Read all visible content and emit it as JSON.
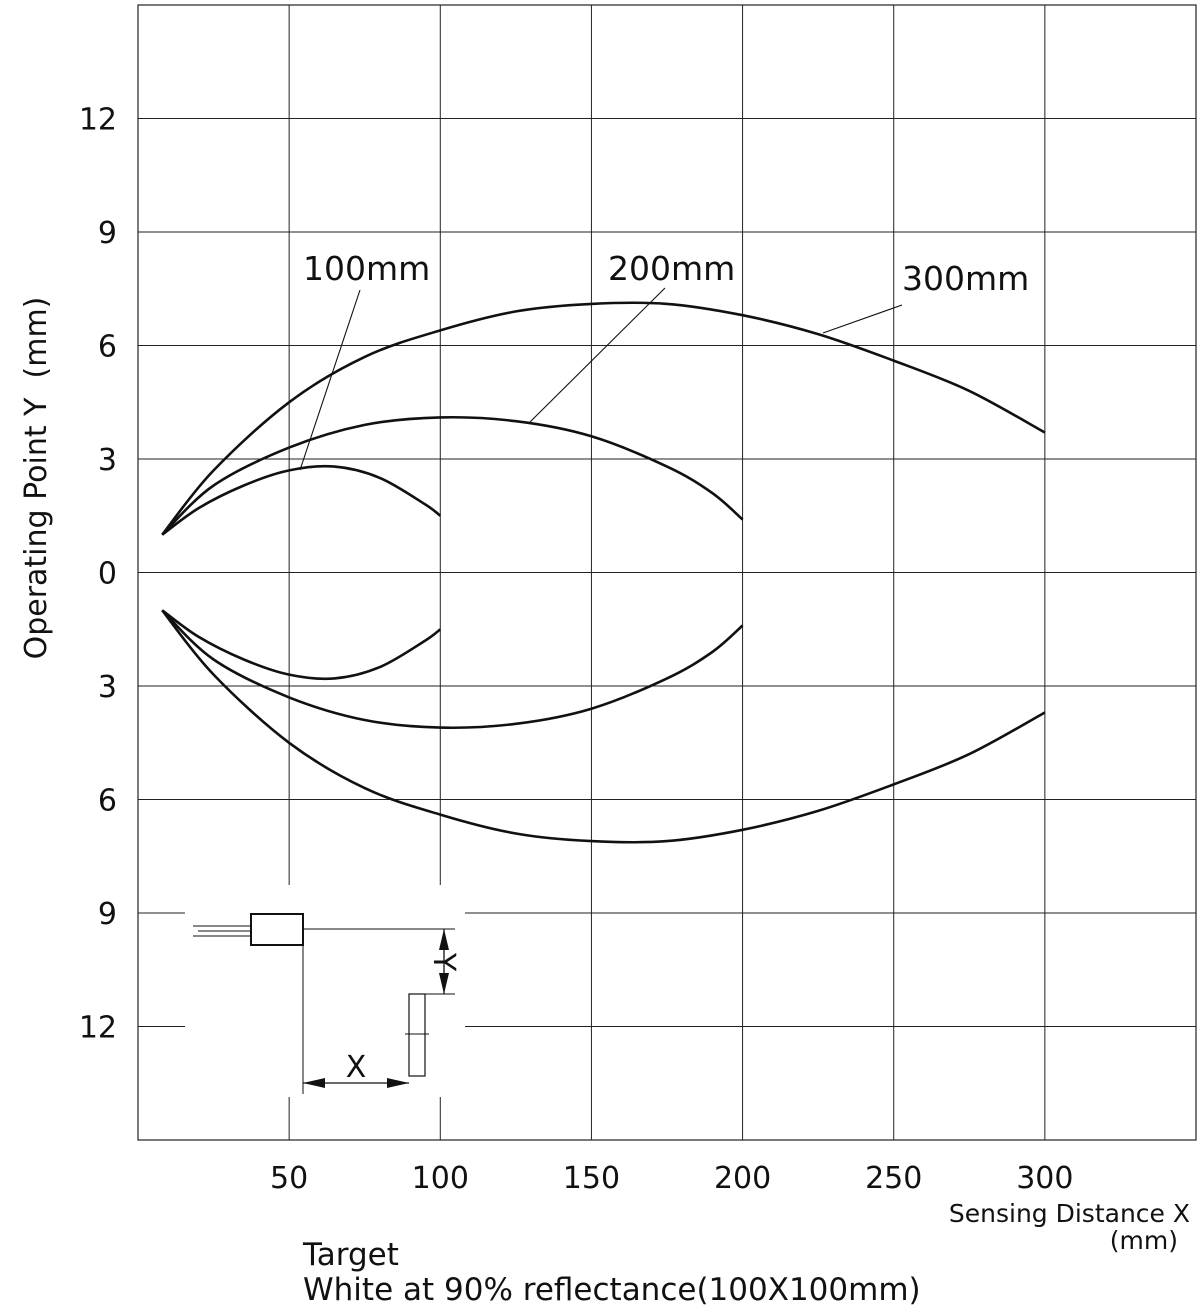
{
  "chart_data": {
    "type": "line",
    "xlabel": "Sensing Distance X",
    "xlabel_unit": "(mm)",
    "ylabel": "Operating Point Y  (mm)",
    "xlim": [
      0,
      350
    ],
    "ylim_display": [
      -15,
      15
    ],
    "x_ticks": [
      50,
      100,
      150,
      200,
      250,
      300
    ],
    "y_ticks": [
      {
        "value": 12,
        "label": "12"
      },
      {
        "value": 9,
        "label": "9"
      },
      {
        "value": 6,
        "label": "6"
      },
      {
        "value": 3,
        "label": "3"
      },
      {
        "value": 0,
        "label": "0"
      },
      {
        "value": -3,
        "label": "3"
      },
      {
        "value": -6,
        "label": "6"
      },
      {
        "value": -9,
        "label": "9"
      },
      {
        "value": -12,
        "label": "12"
      }
    ],
    "grid": true,
    "series": [
      {
        "name": "100mm",
        "x": [
          8,
          20,
          35,
          50,
          65,
          80,
          95,
          100
        ],
        "upper": [
          1.0,
          1.7,
          2.3,
          2.7,
          2.8,
          2.5,
          1.8,
          1.5
        ],
        "lower": [
          -1.0,
          -1.7,
          -2.3,
          -2.7,
          -2.8,
          -2.5,
          -1.8,
          -1.5
        ]
      },
      {
        "name": "200mm",
        "x": [
          8,
          25,
          50,
          75,
          100,
          125,
          150,
          175,
          190,
          200
        ],
        "upper": [
          1.0,
          2.3,
          3.3,
          3.9,
          4.1,
          4.0,
          3.6,
          2.8,
          2.1,
          1.4
        ],
        "lower": [
          -1.0,
          -2.3,
          -3.3,
          -3.9,
          -4.1,
          -4.0,
          -3.6,
          -2.8,
          -2.1,
          -1.4
        ]
      },
      {
        "name": "300mm",
        "x": [
          8,
          25,
          50,
          75,
          100,
          125,
          150,
          175,
          200,
          225,
          250,
          275,
          300
        ],
        "upper": [
          1.0,
          2.7,
          4.5,
          5.7,
          6.4,
          6.9,
          7.1,
          7.1,
          6.8,
          6.3,
          5.6,
          4.8,
          3.7
        ],
        "lower": [
          -1.0,
          -2.7,
          -4.5,
          -5.7,
          -6.4,
          -6.9,
          -7.1,
          -7.1,
          -6.8,
          -6.3,
          -5.6,
          -4.8,
          -3.7
        ]
      }
    ],
    "annotations": {
      "diagram_x": "X",
      "diagram_y": "Y",
      "target_line1": "Target",
      "target_line2": "White at 90% reflectance(100X100mm)"
    }
  }
}
